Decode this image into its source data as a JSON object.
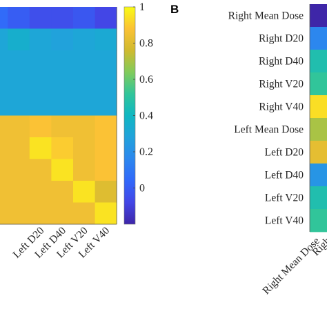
{
  "chart_data": [
    {
      "type": "heatmap",
      "panel_label": "",
      "title": "",
      "xlabel": "",
      "ylabel": "",
      "x_categories": [
        "",
        "",
        "",
        "Left D20",
        "Left D40",
        "Left V20",
        "Left V40"
      ],
      "y_categories": [],
      "colorbar": {
        "range": [
          -0.2,
          1
        ],
        "ticks": [
          0,
          0.2,
          0.4,
          0.6,
          0.8,
          1
        ],
        "colormap": "parula"
      },
      "values": [
        [
          0.1,
          0.05,
          0.0,
          -0.05,
          -0.05,
          -0.02,
          -0.08
        ],
        [
          0.3,
          0.3,
          0.35,
          0.3,
          0.28,
          0.3,
          0.32
        ],
        [
          0.3,
          0.3,
          0.3,
          0.3,
          0.3,
          0.3,
          0.3
        ],
        [
          0.3,
          0.3,
          0.3,
          0.3,
          0.3,
          0.3,
          0.3
        ],
        [
          0.3,
          0.3,
          0.3,
          0.3,
          0.3,
          0.3,
          0.3
        ],
        [
          0.85,
          0.85,
          0.85,
          0.88,
          0.85,
          0.85,
          0.88
        ],
        [
          0.85,
          0.85,
          0.85,
          0.95,
          0.9,
          0.85,
          0.88
        ],
        [
          0.85,
          0.85,
          0.85,
          0.85,
          0.95,
          0.85,
          0.88
        ],
        [
          0.85,
          0.85,
          0.85,
          0.85,
          0.85,
          0.95,
          0.8
        ],
        [
          0.85,
          0.85,
          0.85,
          0.85,
          0.85,
          0.85,
          0.95
        ]
      ]
    },
    {
      "type": "heatmap",
      "panel_label": "B",
      "title": "",
      "xlabel": "",
      "ylabel": "",
      "y_categories": [
        "Right Mean Dose",
        "Right D20",
        "Right D40",
        "Right V20",
        "Right V40",
        "Left Mean Dose",
        "Left D20",
        "Left D40",
        "Left V20",
        "Left V40"
      ],
      "x_categories": [
        "Right Mean Dose",
        "Righ"
      ],
      "visible_column_values": [
        0.0,
        0.3,
        0.55,
        0.6,
        0.95,
        0.75,
        0.85,
        0.35,
        0.55,
        0.6
      ]
    }
  ]
}
